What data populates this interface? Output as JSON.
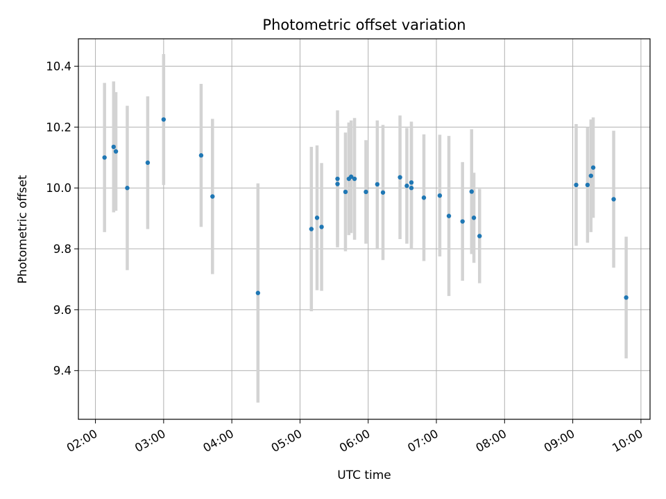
{
  "chart_data": {
    "type": "scatter",
    "title": "Photometric offset variation",
    "xlabel": "UTC time",
    "ylabel": "Photometric offset",
    "x_tick_labels": [
      "02:00",
      "03:00",
      "04:00",
      "05:00",
      "06:00",
      "07:00",
      "08:00",
      "09:00",
      "10:00"
    ],
    "y_tick_labels": [
      "9.4",
      "9.6",
      "9.8",
      "10.0",
      "10.2",
      "10.4"
    ],
    "x_ticks": [
      "02:00",
      "03:00",
      "04:00",
      "05:00",
      "06:00",
      "07:00",
      "08:00",
      "09:00",
      "10:00"
    ],
    "y_ticks": [
      9.4,
      9.6,
      9.8,
      10.0,
      10.2,
      10.4
    ],
    "xlim": [
      "01:45",
      "10:08"
    ],
    "ylim": [
      9.24,
      10.49
    ],
    "grid": true,
    "colors": {
      "point": "#1f77b4",
      "errorbar": "#d3d3d3",
      "grid": "#b0b0b0"
    },
    "series": [
      {
        "x": [
          "02:08",
          "02:16",
          "02:18",
          "02:28",
          "02:46",
          "03:00",
          "03:33",
          "03:43",
          "04:23",
          "05:10",
          "05:15",
          "05:19",
          "05:33",
          "05:33",
          "05:40",
          "05:43",
          "05:45",
          "05:48",
          "05:58",
          "06:08",
          "06:13",
          "06:28",
          "06:34",
          "06:38",
          "06:38",
          "06:49",
          "07:03",
          "07:11",
          "07:23",
          "07:31",
          "07:33",
          "07:38",
          "09:03",
          "09:13",
          "09:16",
          "09:18",
          "09:36",
          "09:47"
        ],
        "y": [
          10.1,
          10.135,
          10.12,
          10.0,
          10.083,
          10.225,
          10.107,
          9.972,
          9.655,
          9.865,
          9.902,
          9.872,
          10.03,
          10.013,
          9.987,
          10.03,
          10.037,
          10.03,
          9.987,
          10.012,
          9.985,
          10.035,
          10.007,
          10.018,
          10.0,
          9.968,
          9.975,
          9.908,
          9.89,
          9.988,
          9.902,
          9.842,
          10.01,
          10.01,
          10.04,
          10.067,
          9.963,
          9.64
        ],
        "yerr": [
          0.245,
          0.215,
          0.195,
          0.27,
          0.218,
          0.215,
          0.235,
          0.255,
          0.36,
          0.27,
          0.238,
          0.21,
          0.225,
          0.2,
          0.195,
          0.185,
          0.185,
          0.2,
          0.17,
          0.21,
          0.222,
          0.203,
          0.19,
          0.2,
          0.2,
          0.208,
          0.2,
          0.263,
          0.195,
          0.205,
          0.148,
          0.155,
          0.2,
          0.19,
          0.185,
          0.165,
          0.225,
          0.2
        ]
      }
    ]
  }
}
